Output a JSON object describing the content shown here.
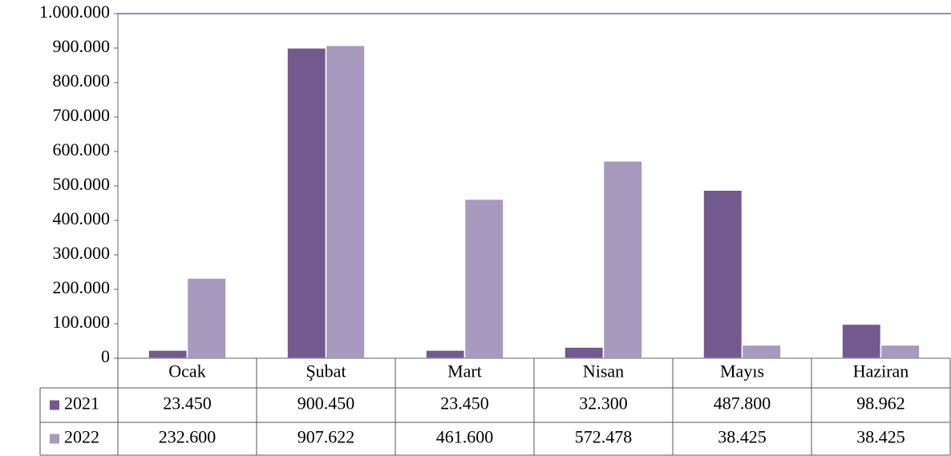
{
  "chart_data": {
    "type": "bar",
    "categories": [
      "Ocak",
      "Şubat",
      "Mart",
      "Nisan",
      "Mayıs",
      "Haziran"
    ],
    "series": [
      {
        "name": "2021",
        "color": "#725a8e",
        "values": [
          23450,
          900450,
          23450,
          32300,
          487800,
          98962
        ],
        "value_labels": [
          "23.450",
          "900.450",
          "23.450",
          "32.300",
          "487.800",
          "98.962"
        ]
      },
      {
        "name": "2022",
        "color": "#a899bf",
        "values": [
          232600,
          907622,
          461600,
          572478,
          38425,
          38425
        ],
        "value_labels": [
          "232.600",
          "907.622",
          "461.600",
          "572.478",
          "38.425",
          "38.425"
        ]
      }
    ],
    "ylim": [
      0,
      1000000
    ],
    "yticks": [
      0,
      {
        "value": 100000,
        "label": "100.000"
      },
      {
        "value": 200000,
        "label": "200.000"
      },
      {
        "value": 300000,
        "label": "300.000"
      },
      {
        "value": 400000,
        "label": "400.000"
      },
      {
        "value": 500000,
        "label": "500.000"
      },
      {
        "value": 600000,
        "label": "600.000"
      },
      {
        "value": 700000,
        "label": "700.000"
      },
      {
        "value": 800000,
        "label": "800.000"
      },
      {
        "value": 900000,
        "label": "900.000"
      },
      {
        "value": 1000000,
        "label": "1.000.000"
      }
    ],
    "grid": false
  }
}
